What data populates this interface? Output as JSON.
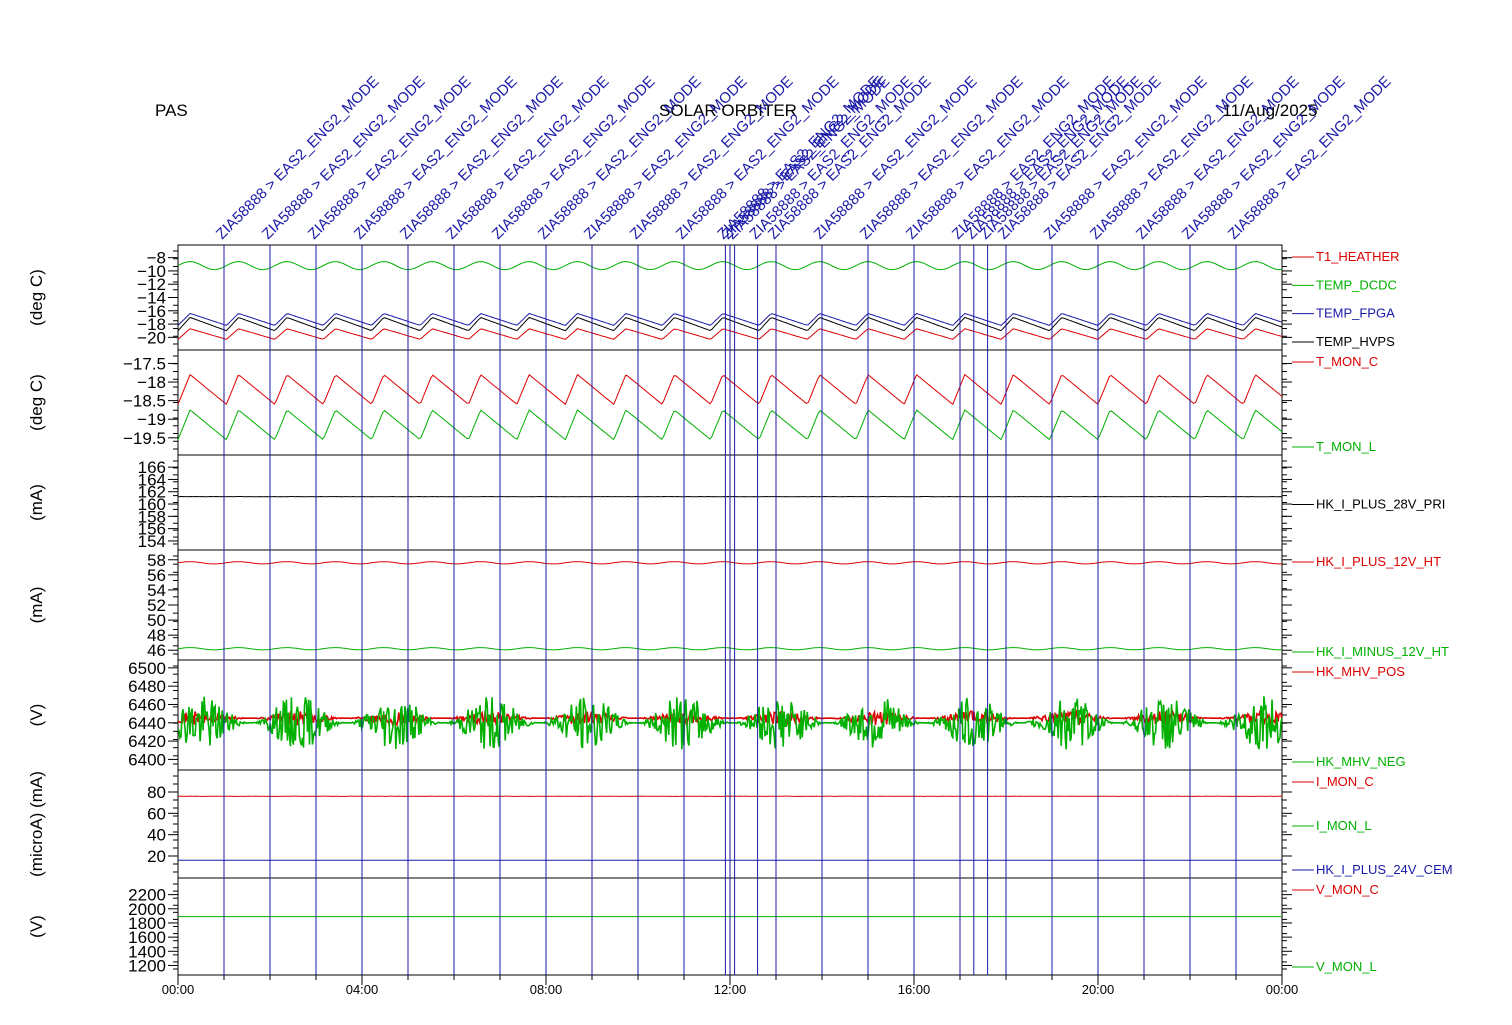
{
  "header": {
    "left": "PAS",
    "center": "SOLAR ORBITER",
    "right": "11/Aug/2025"
  },
  "colors": {
    "black": "#000000",
    "red": "#dd0000",
    "green": "#00b000",
    "blue": "#1a1aa8",
    "bright_green": "#00cc00"
  },
  "chart_data": {
    "type": "line",
    "x_range": [
      "00:00",
      "24:00"
    ],
    "x_ticks": [
      "00:00",
      "04:00",
      "08:00",
      "12:00",
      "16:00",
      "20:00",
      "00:00"
    ],
    "events": [
      {
        "t": 1.0,
        "label": "ZIA58888 > EAS2_ENG2_MODE"
      },
      {
        "t": 2.0,
        "label": "ZIA58888 > EAS2_ENG2_MODE"
      },
      {
        "t": 3.0,
        "label": "ZIA58888 > EAS2_ENG2_MODE"
      },
      {
        "t": 4.0,
        "label": "ZIA58888 > EAS2_ENG2_MODE"
      },
      {
        "t": 5.0,
        "label": "ZIA58888 > EAS2_ENG2_MODE"
      },
      {
        "t": 6.0,
        "label": "ZIA58888 > EAS2_ENG2_MODE"
      },
      {
        "t": 7.0,
        "label": "ZIA58888 > EAS2_ENG2_MODE"
      },
      {
        "t": 8.0,
        "label": "ZIA58888 > EAS2_ENG2_MODE"
      },
      {
        "t": 9.0,
        "label": "ZIA58888 > EAS2_ENG2_MODE"
      },
      {
        "t": 10.0,
        "label": "ZIA58888 > EAS2_ENG2_MODE"
      },
      {
        "t": 11.0,
        "label": "ZIA58888 > EAS2_ENG2_MODE"
      },
      {
        "t": 11.9,
        "label": "ZIA58888 > EAS2_ENG2_MODE"
      },
      {
        "t": 12.0,
        "label": "ZIA58888 > EAS2_ENG2_MODE"
      },
      {
        "t": 12.1,
        "label": "ZIA58888 > EAS2_ENG2_MODE"
      },
      {
        "t": 12.6,
        "label": "ZIA58888 > EAS2_ENG2_MODE"
      },
      {
        "t": 13.0,
        "label": "ZIA58888 > EAS2_ENG2_MODE"
      },
      {
        "t": 14.0,
        "label": "ZIA58888 > EAS2_ENG2_MODE"
      },
      {
        "t": 15.0,
        "label": "ZIA58888 > EAS2_ENG2_MODE"
      },
      {
        "t": 16.0,
        "label": "ZIA58888 > EAS2_ENG2_MODE"
      },
      {
        "t": 17.0,
        "label": "ZIA58888 > EAS2_ENG2_MODE"
      },
      {
        "t": 17.3,
        "label": "ZIA58888 > EAS2_ENG2_MODE"
      },
      {
        "t": 17.6,
        "label": "ZIA58888 > EAS2_ENG2_MODE"
      },
      {
        "t": 18.0,
        "label": "ZIA58888 > EAS2_ENG2_MODE"
      },
      {
        "t": 19.0,
        "label": "ZIA58888 > EAS2_ENG2_MODE"
      },
      {
        "t": 20.0,
        "label": "ZIA58888 > EAS2_ENG2_MODE"
      },
      {
        "t": 21.0,
        "label": "ZIA58888 > EAS2_ENG2_MODE"
      },
      {
        "t": 22.0,
        "label": "ZIA58888 > EAS2_ENG2_MODE"
      },
      {
        "t": 23.0,
        "label": "ZIA58888 > EAS2_ENG2_MODE"
      }
    ],
    "panels": [
      {
        "ylabel": "(deg C)",
        "ylim": [
          -21,
          -7
        ],
        "yticks": [
          -8,
          -10,
          -12,
          -14,
          -16,
          -18,
          -20
        ],
        "series": [
          {
            "name": "T1_HEATHER",
            "color": "#dd0000",
            "base": -19.5,
            "amp": 0.8,
            "shape": "saw"
          },
          {
            "name": "TEMP_DCDC",
            "color": "#00b000",
            "base": -9.2,
            "amp": 0.6,
            "shape": "sine"
          },
          {
            "name": "TEMP_FPGA",
            "color": "#1a1aa8",
            "base": -17.3,
            "amp": 0.9,
            "shape": "saw"
          },
          {
            "name": "TEMP_HVPS",
            "color": "#000000",
            "base": -18.0,
            "amp": 1.0,
            "shape": "saw"
          }
        ]
      },
      {
        "ylabel": "(deg C)",
        "ylim": [
          -19.8,
          -17.3
        ],
        "yticks": [
          -17.5,
          -18.0,
          -18.5,
          -19.0,
          -19.5
        ],
        "series": [
          {
            "name": "T_MON_C",
            "color": "#dd0000",
            "base": -18.2,
            "amp": 0.4,
            "shape": "saw"
          },
          {
            "name": "T_MON_L",
            "color": "#00b000",
            "base": -19.15,
            "amp": 0.4,
            "shape": "saw"
          }
        ]
      },
      {
        "ylabel": "(mA)",
        "ylim": [
          153.5,
          167
        ],
        "yticks": [
          166,
          164,
          162,
          160,
          158,
          156,
          154
        ],
        "series": [
          {
            "name": "HK_I_PLUS_28V_PRI",
            "color": "#000000",
            "base": 161.2,
            "amp": 0.05,
            "shape": "flat"
          }
        ]
      },
      {
        "ylabel": "(mA)",
        "ylim": [
          45.5,
          58.5
        ],
        "yticks": [
          58,
          56,
          54,
          52,
          50,
          48,
          46
        ],
        "series": [
          {
            "name": "HK_I_PLUS_12V_HT",
            "color": "#dd0000",
            "base": 57.6,
            "amp": 0.15,
            "shape": "sine"
          },
          {
            "name": "HK_I_MINUS_12V_HT",
            "color": "#00b000",
            "base": 46.2,
            "amp": 0.15,
            "shape": "sine"
          }
        ]
      },
      {
        "ylabel": "(V)",
        "ylim": [
          6395,
          6502
        ],
        "yticks": [
          6500,
          6480,
          6460,
          6440,
          6420,
          6400
        ],
        "series": [
          {
            "name": "HK_MHV_POS",
            "color": "#dd0000",
            "base": 6445,
            "amp": 8,
            "shape": "noise"
          },
          {
            "name": "HK_MHV_NEG",
            "color": "#00b000",
            "base": 6440,
            "amp": 30,
            "shape": "noise"
          }
        ]
      },
      {
        "ylabel": "(microA) (mA)",
        "ylim": [
          5,
          95
        ],
        "yticks": [
          80,
          60,
          40,
          20
        ],
        "series": [
          {
            "name": "I_MON_C",
            "color": "#dd0000",
            "base": 76,
            "amp": 0.3,
            "shape": "flat"
          },
          {
            "name": "I_MON_L",
            "color": "#00b000",
            "base": 0,
            "amp": 0,
            "shape": "none"
          },
          {
            "name": "HK_I_PLUS_24V_CEM",
            "color": "#1a1aa8",
            "base": 16,
            "amp": 0,
            "shape": "flat"
          }
        ]
      },
      {
        "ylabel": "(V)",
        "ylim": [
          1150,
          2350
        ],
        "yticks": [
          2200,
          2000,
          1800,
          1600,
          1400,
          1200
        ],
        "series": [
          {
            "name": "V_MON_C",
            "color": "#dd0000",
            "base": 0,
            "amp": 0,
            "shape": "none"
          },
          {
            "name": "V_MON_L",
            "color": "#00b000",
            "base": 1890,
            "amp": 0,
            "shape": "flat"
          }
        ]
      }
    ]
  }
}
